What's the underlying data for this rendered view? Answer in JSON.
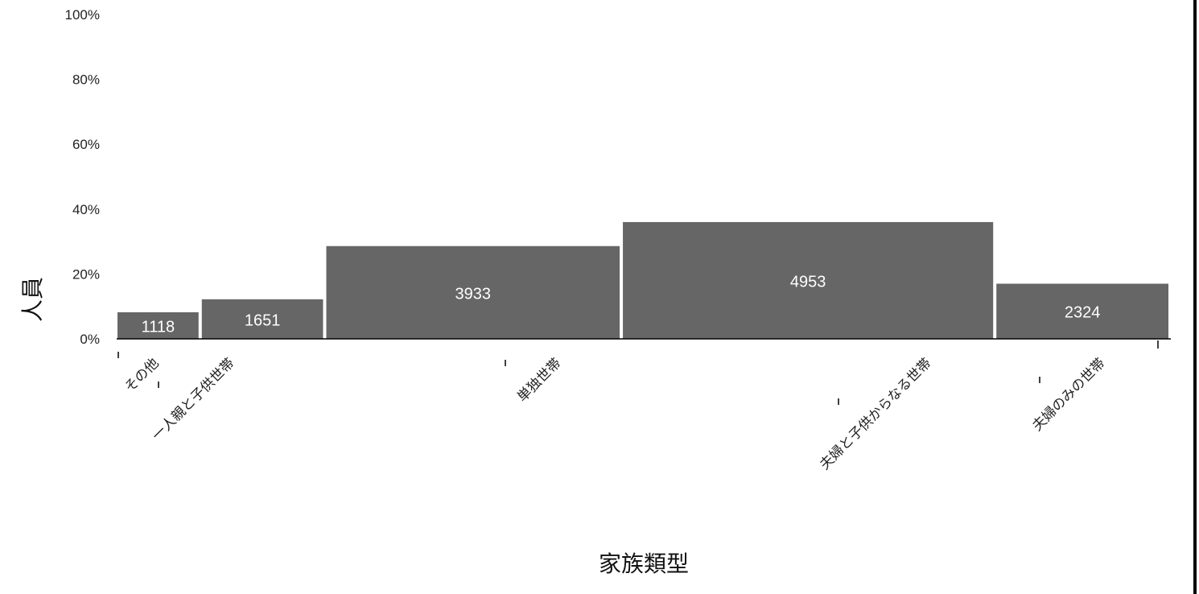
{
  "chart_data": {
    "type": "bar",
    "subtype": "marimekko",
    "xlabel": "家族類型",
    "ylabel": "人員",
    "ylim": [
      0,
      100
    ],
    "yticks": [
      "0%",
      "20%",
      "40%",
      "60%",
      "80%",
      "100%"
    ],
    "grid": false,
    "bar_color": "#666666",
    "categories": [
      "その他",
      "一人親と子供世帯",
      "単独世帯",
      "夫婦と子供からなる世帯",
      "夫婦のみの世帯"
    ],
    "values": [
      1118,
      1651,
      3933,
      4953,
      2324
    ],
    "heights_percent": [
      8.2,
      12.2,
      28.6,
      36.0,
      17.0
    ]
  }
}
